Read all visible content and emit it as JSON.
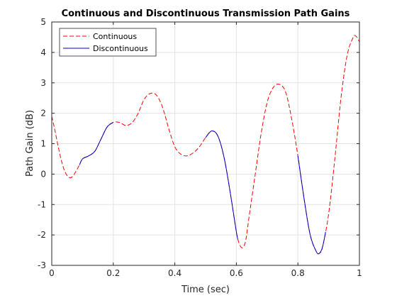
{
  "chart_data": {
    "type": "line",
    "title": "Continuous and Discontinuous Transmission Path Gains",
    "xlabel": "Time (sec)",
    "ylabel": "Path Gain (dB)",
    "xlim": [
      0,
      1
    ],
    "ylim": [
      -3,
      5
    ],
    "x_ticks": [
      0,
      0.2,
      0.4,
      0.6,
      0.8,
      1
    ],
    "x_tick_labels": [
      "0",
      "0.2",
      "0.4",
      "0.6",
      "0.8",
      "1"
    ],
    "y_ticks": [
      -3,
      -2,
      -1,
      0,
      1,
      2,
      3,
      4,
      5
    ],
    "y_tick_labels": [
      "-3",
      "-2",
      "-1",
      "0",
      "1",
      "2",
      "3",
      "4",
      "5"
    ],
    "grid": true,
    "legend_position": "top-left",
    "series": [
      {
        "name": "Continuous",
        "color": "#ff0000",
        "dash": "dashed",
        "points": [
          [
            0,
            1.9
          ],
          [
            0.01,
            1.45
          ],
          [
            0.02,
            0.95
          ],
          [
            0.03,
            0.5
          ],
          [
            0.04,
            0.15
          ],
          [
            0.05,
            -0.05
          ],
          [
            0.06,
            -0.12
          ],
          [
            0.07,
            -0.05
          ],
          [
            0.08,
            0.12
          ],
          [
            0.09,
            0.3
          ],
          [
            0.1,
            0.5
          ],
          [
            0.12,
            0.6
          ],
          [
            0.14,
            0.75
          ],
          [
            0.16,
            1.15
          ],
          [
            0.18,
            1.55
          ],
          [
            0.2,
            1.7
          ],
          [
            0.22,
            1.7
          ],
          [
            0.24,
            1.6
          ],
          [
            0.26,
            1.68
          ],
          [
            0.28,
            1.98
          ],
          [
            0.3,
            2.45
          ],
          [
            0.32,
            2.65
          ],
          [
            0.34,
            2.6
          ],
          [
            0.36,
            2.2
          ],
          [
            0.38,
            1.5
          ],
          [
            0.4,
            0.9
          ],
          [
            0.42,
            0.65
          ],
          [
            0.44,
            0.6
          ],
          [
            0.46,
            0.7
          ],
          [
            0.48,
            0.9
          ],
          [
            0.5,
            1.2
          ],
          [
            0.52,
            1.42
          ],
          [
            0.54,
            1.25
          ],
          [
            0.56,
            0.55
          ],
          [
            0.58,
            -0.6
          ],
          [
            0.6,
            -1.9
          ],
          [
            0.61,
            -2.3
          ],
          [
            0.62,
            -2.42
          ],
          [
            0.63,
            -2.2
          ],
          [
            0.64,
            -1.5
          ],
          [
            0.66,
            -0.1
          ],
          [
            0.68,
            1.3
          ],
          [
            0.7,
            2.35
          ],
          [
            0.72,
            2.85
          ],
          [
            0.74,
            2.95
          ],
          [
            0.76,
            2.7
          ],
          [
            0.78,
            1.8
          ],
          [
            0.8,
            0.6
          ],
          [
            0.82,
            -0.8
          ],
          [
            0.84,
            -2.0
          ],
          [
            0.86,
            -2.55
          ],
          [
            0.87,
            -2.6
          ],
          [
            0.88,
            -2.4
          ],
          [
            0.9,
            -1.3
          ],
          [
            0.92,
            0.5
          ],
          [
            0.94,
            2.5
          ],
          [
            0.96,
            3.9
          ],
          [
            0.98,
            4.5
          ],
          [
            0.99,
            4.52
          ],
          [
            1.0,
            4.35
          ]
        ]
      },
      {
        "name": "Discontinuous",
        "color": "#0000cc",
        "dash": "solid",
        "segments": [
          [
            [
              0.09,
              0.3
            ],
            [
              0.1,
              0.5
            ],
            [
              0.12,
              0.6
            ],
            [
              0.14,
              0.75
            ],
            [
              0.16,
              1.15
            ],
            [
              0.18,
              1.55
            ],
            [
              0.2,
              1.7
            ]
          ],
          [
            [
              0.5,
              1.2
            ],
            [
              0.52,
              1.42
            ],
            [
              0.54,
              1.25
            ],
            [
              0.56,
              0.55
            ],
            [
              0.58,
              -0.6
            ],
            [
              0.6,
              -1.9
            ],
            [
              0.605,
              -2.15
            ]
          ],
          [
            [
              0.8,
              0.6
            ],
            [
              0.82,
              -0.8
            ],
            [
              0.84,
              -2.0
            ],
            [
              0.86,
              -2.55
            ],
            [
              0.87,
              -2.6
            ],
            [
              0.88,
              -2.4
            ],
            [
              0.89,
              -1.9
            ]
          ]
        ]
      }
    ]
  }
}
